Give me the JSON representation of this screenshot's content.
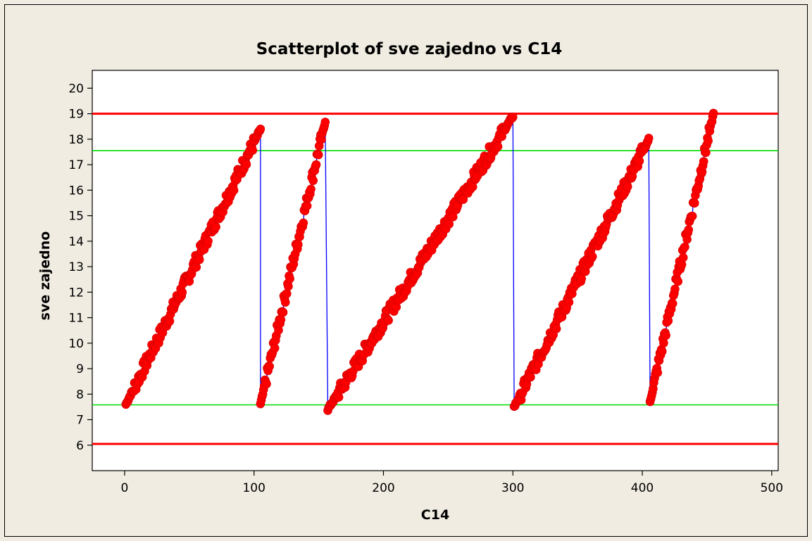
{
  "chart_data": {
    "type": "scatter",
    "title": "Scatterplot of sve zajedno vs C14",
    "xlabel": "C14",
    "ylabel": "sve zajedno",
    "xlim": [
      -25,
      505
    ],
    "ylim": [
      5,
      20.7
    ],
    "x_ticks": [
      0,
      100,
      200,
      300,
      400,
      500
    ],
    "y_ticks": [
      6,
      7,
      8,
      9,
      10,
      11,
      12,
      13,
      14,
      15,
      16,
      17,
      18,
      19,
      20
    ],
    "grid": false,
    "legend": "none",
    "series": [
      {
        "segments": [
          {
            "x_start": 1,
            "x_end": 105,
            "y_start": 7.6,
            "y_end": 18.4
          },
          {
            "x_start": 105,
            "x_end": 155,
            "y_start": 7.6,
            "y_end": 18.7
          },
          {
            "x_start": 157,
            "x_end": 300,
            "y_start": 7.4,
            "y_end": 18.9
          },
          {
            "x_start": 301,
            "x_end": 405,
            "y_start": 7.5,
            "y_end": 18.0
          },
          {
            "x_start": 406,
            "x_end": 455,
            "y_start": 7.7,
            "y_end": 19.0
          }
        ],
        "marker_color": "#ff0000",
        "line_color": "#0000ff"
      }
    ],
    "reference_lines": [
      {
        "y": 19.0,
        "color": "#ff0000"
      },
      {
        "y": 6.05,
        "color": "#ff0000"
      },
      {
        "y": 17.55,
        "color": "#00dd00"
      },
      {
        "y": 7.58,
        "color": "#00dd00"
      }
    ]
  }
}
